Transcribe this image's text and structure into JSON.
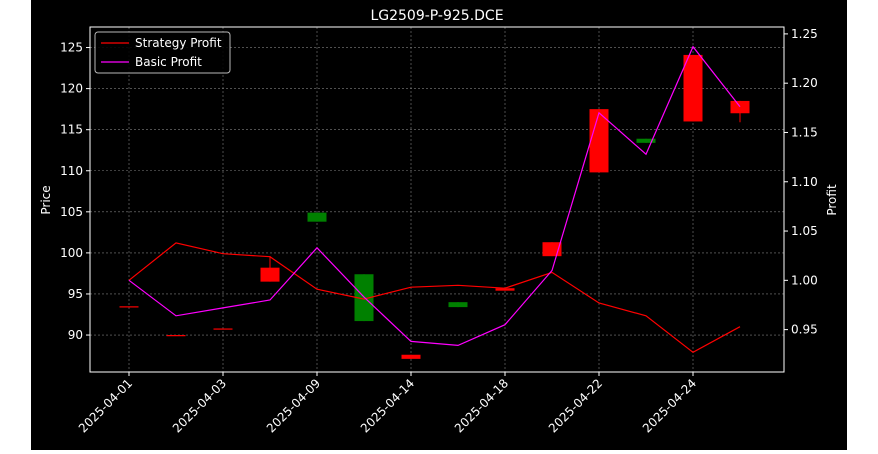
{
  "chart_data": {
    "type": "candlestick",
    "title": "LG2509-P-925.DCE",
    "xlabel": "",
    "ylabel": "Price",
    "ylabel_right": "Profit",
    "ylim": [
      85.5,
      127.5
    ],
    "ylim_right": [
      0.907,
      1.257
    ],
    "yticks": [
      90,
      95,
      100,
      105,
      110,
      115,
      120,
      125
    ],
    "yticks_right": [
      0.95,
      1.0,
      1.05,
      1.1,
      1.15,
      1.2,
      1.25
    ],
    "yticks_right_labels": [
      "0.95",
      "1.00",
      "1.05",
      "1.10",
      "1.15",
      "1.20",
      "1.25"
    ],
    "x_tick_labels": [
      "2025-04-01",
      "2025-04-03",
      "2025-04-09",
      "2025-04-14",
      "2025-04-18",
      "2025-04-22",
      "2025-04-24"
    ],
    "x_tick_positions": [
      0,
      2,
      4,
      6,
      8,
      10,
      12
    ],
    "candles": [
      {
        "i": 0,
        "open": 93.5,
        "close": 93.5,
        "high": 93.5,
        "low": 93.5,
        "color": "#ff0000"
      },
      {
        "i": 1,
        "open": 90.0,
        "close": 90.0,
        "high": 90.0,
        "low": 90.0,
        "color": "#ff0000"
      },
      {
        "i": 2,
        "open": 90.8,
        "close": 90.8,
        "high": 90.8,
        "low": 90.8,
        "color": "#ff0000"
      },
      {
        "i": 3,
        "open": 98.2,
        "close": 96.5,
        "high": 99.6,
        "low": 96.5,
        "color": "#ff0000"
      },
      {
        "i": 4,
        "open": 103.8,
        "close": 104.9,
        "high": 104.9,
        "low": 103.8,
        "color": "#008000"
      },
      {
        "i": 5,
        "open": 91.7,
        "close": 97.4,
        "high": 97.4,
        "low": 91.7,
        "color": "#008000"
      },
      {
        "i": 6,
        "open": 87.6,
        "close": 87.1,
        "high": 87.6,
        "low": 87.1,
        "color": "#ff0000"
      },
      {
        "i": 7,
        "open": 93.4,
        "close": 94.0,
        "high": 94.0,
        "low": 93.4,
        "color": "#008000"
      },
      {
        "i": 8,
        "open": 95.7,
        "close": 95.4,
        "high": 95.7,
        "low": 95.4,
        "color": "#ff0000"
      },
      {
        "i": 9,
        "open": 101.3,
        "close": 99.6,
        "high": 101.3,
        "low": 99.6,
        "color": "#ff0000"
      },
      {
        "i": 10,
        "open": 117.5,
        "close": 109.8,
        "high": 117.5,
        "low": 109.8,
        "color": "#ff0000"
      },
      {
        "i": 11,
        "open": 113.4,
        "close": 113.9,
        "high": 113.9,
        "low": 113.4,
        "color": "#008000"
      },
      {
        "i": 12,
        "open": 124.1,
        "close": 116.0,
        "high": 124.1,
        "low": 116.0,
        "color": "#ff0000"
      },
      {
        "i": 13,
        "open": 118.5,
        "close": 117.0,
        "high": 118.5,
        "low": 115.9,
        "color": "#ff0000"
      }
    ],
    "series": [
      {
        "name": "Strategy Profit",
        "color": "#ff0000",
        "axis": "right",
        "values": [
          1.0,
          1.038,
          1.027,
          1.024,
          0.991,
          0.981,
          0.993,
          0.995,
          0.992,
          1.008,
          0.977,
          0.964,
          0.927,
          0.953
        ]
      },
      {
        "name": "Basic Profit",
        "color": "#ff00ff",
        "axis": "right",
        "values": [
          1.0,
          0.964,
          0.972,
          0.98,
          1.033,
          0.983,
          0.938,
          0.934,
          0.955,
          1.01,
          1.17,
          1.128,
          1.237,
          1.176
        ]
      }
    ],
    "grid": true,
    "legend": "top-left"
  }
}
